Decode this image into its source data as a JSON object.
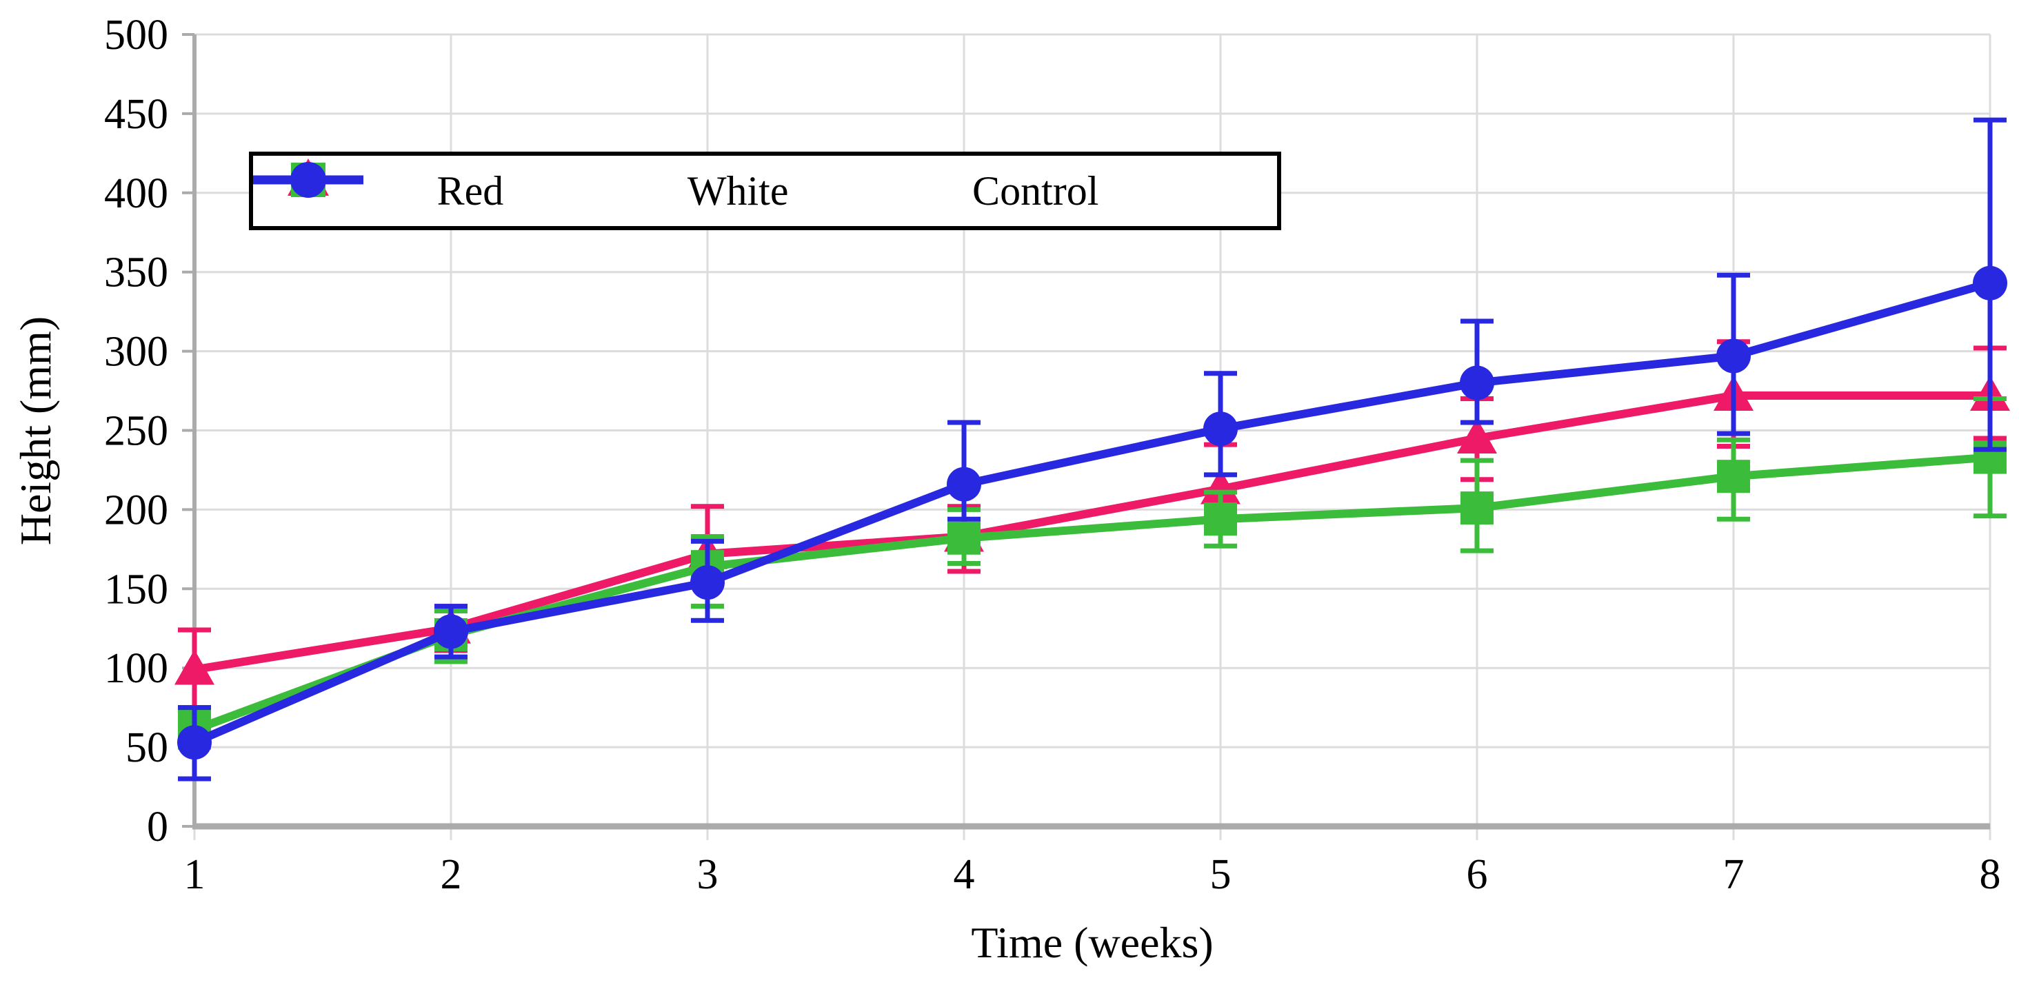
{
  "chart_data": {
    "type": "line",
    "title": "",
    "xlabel": "Time (weeks)",
    "ylabel": "Height (mm)",
    "x": [
      1,
      2,
      3,
      4,
      5,
      6,
      7,
      8
    ],
    "x_tick_labels": [
      "1",
      "2",
      "3",
      "4",
      "5",
      "6",
      "7",
      "8"
    ],
    "y_tick_labels": [
      "0",
      "50",
      "100",
      "150",
      "200",
      "250",
      "300",
      "350",
      "400",
      "450",
      "500"
    ],
    "xlim": [
      1,
      8
    ],
    "ylim": [
      0,
      500
    ],
    "y_tick_step": 50,
    "grid": true,
    "error_bars": true,
    "legend_position": "top-left-inside",
    "series": [
      {
        "name": "Red",
        "color": "#EE1A67",
        "marker": "triangle",
        "values": [
          99,
          125,
          172,
          183,
          213,
          245,
          272,
          272
        ],
        "err_up": [
          25,
          14,
          30,
          19,
          28,
          25,
          34,
          30
        ],
        "err_down": [
          24,
          14,
          33,
          22,
          27,
          26,
          32,
          27
        ]
      },
      {
        "name": "White",
        "color": "#3BBD3B",
        "marker": "square",
        "values": [
          61,
          121,
          164,
          182,
          194,
          201,
          221,
          233
        ],
        "err_up": [
          11,
          15,
          19,
          18,
          17,
          30,
          23,
          37
        ],
        "err_down": [
          11,
          17,
          25,
          16,
          17,
          27,
          27,
          37
        ]
      },
      {
        "name": "Control",
        "color": "#2828E0",
        "marker": "circle",
        "values": [
          53,
          123,
          154,
          216,
          251,
          280,
          297,
          343
        ],
        "err_up": [
          22,
          16,
          26,
          39,
          35,
          39,
          51,
          103
        ],
        "err_down": [
          23,
          16,
          24,
          22,
          29,
          25,
          49,
          105
        ]
      }
    ],
    "colors": {
      "grid": "#DCDCDC",
      "axis": "#ABABAB",
      "text": "#000000",
      "background": "#FFFFFF"
    }
  }
}
